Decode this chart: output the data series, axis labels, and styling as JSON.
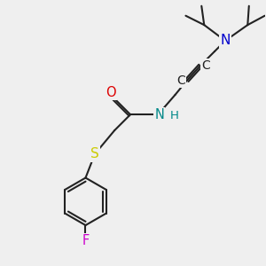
{
  "bg_color": "#efefef",
  "bond_color": "#222222",
  "bond_width": 1.5,
  "atom_colors": {
    "O": "#dd0000",
    "N_amide": "#008888",
    "N_diiso": "#0000cc",
    "S": "#cccc00",
    "F": "#cc00cc",
    "C": "#222222",
    "H": "#008888"
  },
  "font_size": 10.5
}
